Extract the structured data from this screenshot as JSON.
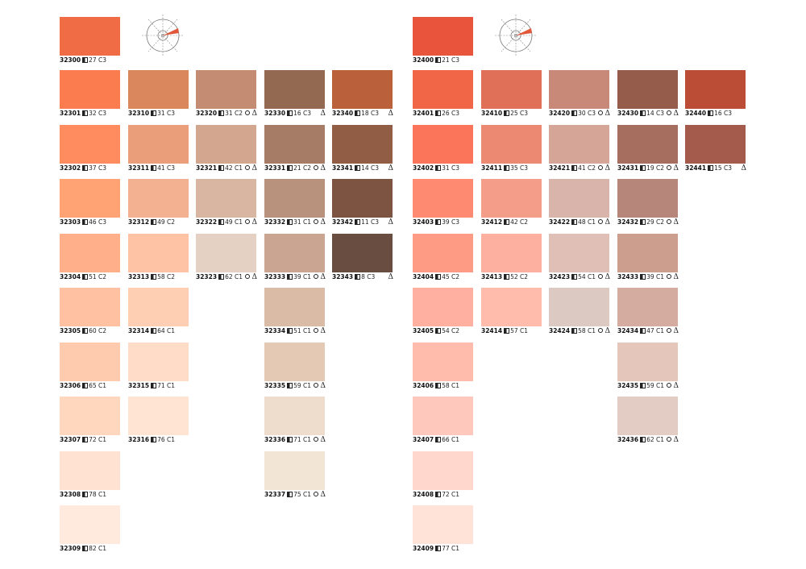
{
  "blocks": [
    {
      "head": {
        "code": "32300",
        "lum": "27",
        "chroma": "C3",
        "color": "#f06c45"
      },
      "columns": [
        [
          {
            "code": "32301",
            "lum": "32",
            "chroma": "C3",
            "color": "#fb7d4f",
            "circle": false,
            "delta": false
          },
          {
            "code": "32302",
            "lum": "37",
            "chroma": "C3",
            "color": "#fe8c5e",
            "circle": false,
            "delta": false
          },
          {
            "code": "32303",
            "lum": "46",
            "chroma": "C3",
            "color": "#ffa374",
            "circle": false,
            "delta": false
          },
          {
            "code": "32304",
            "lum": "51",
            "chroma": "C2",
            "color": "#ffb08a",
            "circle": false,
            "delta": false
          },
          {
            "code": "32305",
            "lum": "60",
            "chroma": "C2",
            "color": "#ffc1a2",
            "circle": false,
            "delta": false
          },
          {
            "code": "32306",
            "lum": "65",
            "chroma": "C1",
            "color": "#ffcbae",
            "circle": false,
            "delta": false
          },
          {
            "code": "32307",
            "lum": "72",
            "chroma": "C1",
            "color": "#ffd6be",
            "circle": false,
            "delta": false
          },
          {
            "code": "32308",
            "lum": "78",
            "chroma": "C1",
            "color": "#ffe2d2",
            "circle": false,
            "delta": false
          },
          {
            "code": "32309",
            "lum": "82",
            "chroma": "C1",
            "color": "#ffeadd",
            "circle": false,
            "delta": false
          }
        ],
        [
          {
            "code": "32310",
            "lum": "31",
            "chroma": "C3",
            "color": "#da875e",
            "circle": false,
            "delta": false
          },
          {
            "code": "32311",
            "lum": "41",
            "chroma": "C3",
            "color": "#ea9e7a",
            "circle": false,
            "delta": false
          },
          {
            "code": "32312",
            "lum": "49",
            "chroma": "C2",
            "color": "#f4b192",
            "circle": false,
            "delta": false
          },
          {
            "code": "32313",
            "lum": "58",
            "chroma": "C2",
            "color": "#fec2a5",
            "circle": false,
            "delta": false
          },
          {
            "code": "32314",
            "lum": "64",
            "chroma": "C1",
            "color": "#ffcfb4",
            "circle": false,
            "delta": false
          },
          {
            "code": "32315",
            "lum": "71",
            "chroma": "C1",
            "color": "#ffdcc7",
            "circle": false,
            "delta": false
          },
          {
            "code": "32316",
            "lum": "76",
            "chroma": "C1",
            "color": "#ffe4d4",
            "circle": false,
            "delta": false
          }
        ],
        [
          {
            "code": "32320",
            "lum": "31",
            "chroma": "C2",
            "color": "#c58c74",
            "circle": true,
            "delta": true
          },
          {
            "code": "32321",
            "lum": "42",
            "chroma": "C1",
            "color": "#d3a68f",
            "circle": true,
            "delta": true
          },
          {
            "code": "32322",
            "lum": "49",
            "chroma": "C1",
            "color": "#d8b6a2",
            "circle": true,
            "delta": true
          },
          {
            "code": "32323",
            "lum": "62",
            "chroma": "C1",
            "color": "#e4d1c4",
            "circle": true,
            "delta": true
          }
        ],
        [
          {
            "code": "32330",
            "lum": "16",
            "chroma": "C3",
            "color": "#936a51",
            "circle": false,
            "delta": true
          },
          {
            "code": "32331",
            "lum": "21",
            "chroma": "C2",
            "color": "#a67c66",
            "circle": true,
            "delta": true
          },
          {
            "code": "32332",
            "lum": "31",
            "chroma": "C1",
            "color": "#b8927c",
            "circle": true,
            "delta": true
          },
          {
            "code": "32333",
            "lum": "39",
            "chroma": "C1",
            "color": "#caa591",
            "circle": true,
            "delta": true
          },
          {
            "code": "32334",
            "lum": "51",
            "chroma": "C1",
            "color": "#dabba5",
            "circle": true,
            "delta": true
          },
          {
            "code": "32335",
            "lum": "59",
            "chroma": "C1",
            "color": "#e4cab5",
            "circle": true,
            "delta": true
          },
          {
            "code": "32336",
            "lum": "71",
            "chroma": "C1",
            "color": "#eeddcd",
            "circle": true,
            "delta": true
          },
          {
            "code": "32337",
            "lum": "75",
            "chroma": "C1",
            "color": "#f2e5d6",
            "circle": true,
            "delta": true
          }
        ],
        [
          {
            "code": "32340",
            "lum": "18",
            "chroma": "C3",
            "color": "#ba603b",
            "circle": false,
            "delta": true
          },
          {
            "code": "32341",
            "lum": "14",
            "chroma": "C3",
            "color": "#925d45",
            "circle": false,
            "delta": true
          },
          {
            "code": "32342",
            "lum": "11",
            "chroma": "C3",
            "color": "#7d5442",
            "circle": false,
            "delta": true
          },
          {
            "code": "32343",
            "lum": "8",
            "chroma": "C3",
            "color": "#684d40",
            "circle": false,
            "delta": true
          }
        ]
      ]
    },
    {
      "head": {
        "code": "32400",
        "lum": "21",
        "chroma": "C3",
        "color": "#e8553c"
      },
      "columns": [
        [
          {
            "code": "32401",
            "lum": "26",
            "chroma": "C3",
            "color": "#f26648",
            "circle": false,
            "delta": false
          },
          {
            "code": "32402",
            "lum": "31",
            "chroma": "C3",
            "color": "#fb755a",
            "circle": false,
            "delta": false
          },
          {
            "code": "32403",
            "lum": "39",
            "chroma": "C3",
            "color": "#fe8a71",
            "circle": false,
            "delta": false
          },
          {
            "code": "32404",
            "lum": "45",
            "chroma": "C2",
            "color": "#fe9b85",
            "circle": false,
            "delta": false
          },
          {
            "code": "32405",
            "lum": "54",
            "chroma": "C2",
            "color": "#ffb0a0",
            "circle": false,
            "delta": false
          },
          {
            "code": "32406",
            "lum": "58",
            "chroma": "C1",
            "color": "#ffbbab",
            "circle": false,
            "delta": false
          },
          {
            "code": "32407",
            "lum": "66",
            "chroma": "C1",
            "color": "#ffc8bd",
            "circle": false,
            "delta": false
          },
          {
            "code": "32408",
            "lum": "72",
            "chroma": "C1",
            "color": "#ffd7cc",
            "circle": false,
            "delta": false
          },
          {
            "code": "32409",
            "lum": "77",
            "chroma": "C1",
            "color": "#ffe2d8",
            "circle": false,
            "delta": false
          }
        ],
        [
          {
            "code": "32410",
            "lum": "25",
            "chroma": "C3",
            "color": "#e07058",
            "circle": false,
            "delta": false
          },
          {
            "code": "32411",
            "lum": "35",
            "chroma": "C3",
            "color": "#ec8973",
            "circle": false,
            "delta": false
          },
          {
            "code": "32412",
            "lum": "42",
            "chroma": "C2",
            "color": "#f49d89",
            "circle": false,
            "delta": false
          },
          {
            "code": "32413",
            "lum": "52",
            "chroma": "C2",
            "color": "#fdb0a0",
            "circle": false,
            "delta": false
          },
          {
            "code": "32414",
            "lum": "57",
            "chroma": "C1",
            "color": "#ffbbab",
            "circle": false,
            "delta": false
          }
        ],
        [
          {
            "code": "32420",
            "lum": "30",
            "chroma": "C3",
            "color": "#c98979",
            "circle": true,
            "delta": true
          },
          {
            "code": "32421",
            "lum": "41",
            "chroma": "C2",
            "color": "#d5a597",
            "circle": true,
            "delta": true
          },
          {
            "code": "32422",
            "lum": "48",
            "chroma": "C1",
            "color": "#d9b4aa",
            "circle": true,
            "delta": true
          },
          {
            "code": "32423",
            "lum": "54",
            "chroma": "C1",
            "color": "#dfbfb6",
            "circle": true,
            "delta": true
          },
          {
            "code": "32424",
            "lum": "58",
            "chroma": "C1",
            "color": "#dccac2",
            "circle": true,
            "delta": true
          }
        ],
        [
          {
            "code": "32430",
            "lum": "14",
            "chroma": "C3",
            "color": "#955b4b",
            "circle": true,
            "delta": true
          },
          {
            "code": "32431",
            "lum": "19",
            "chroma": "C2",
            "color": "#a66e5f",
            "circle": true,
            "delta": true
          },
          {
            "code": "32432",
            "lum": "29",
            "chroma": "C2",
            "color": "#b58679",
            "circle": true,
            "delta": true
          },
          {
            "code": "32433",
            "lum": "39",
            "chroma": "C1",
            "color": "#cc9e8e",
            "circle": true,
            "delta": true
          },
          {
            "code": "32434",
            "lum": "47",
            "chroma": "C1",
            "color": "#d5ada0",
            "circle": true,
            "delta": true
          },
          {
            "code": "32435",
            "lum": "59",
            "chroma": "C1",
            "color": "#e4c6ba",
            "circle": true,
            "delta": true
          },
          {
            "code": "32436",
            "lum": "62",
            "chroma": "C1",
            "color": "#e2ccc4",
            "circle": true,
            "delta": true
          }
        ],
        [
          {
            "code": "32440",
            "lum": "16",
            "chroma": "C3",
            "color": "#bb4c35",
            "circle": false,
            "delta": false
          },
          {
            "code": "32441",
            "lum": "15",
            "chroma": "C3",
            "color": "#a45b4b",
            "circle": false,
            "delta": true
          }
        ]
      ]
    }
  ]
}
